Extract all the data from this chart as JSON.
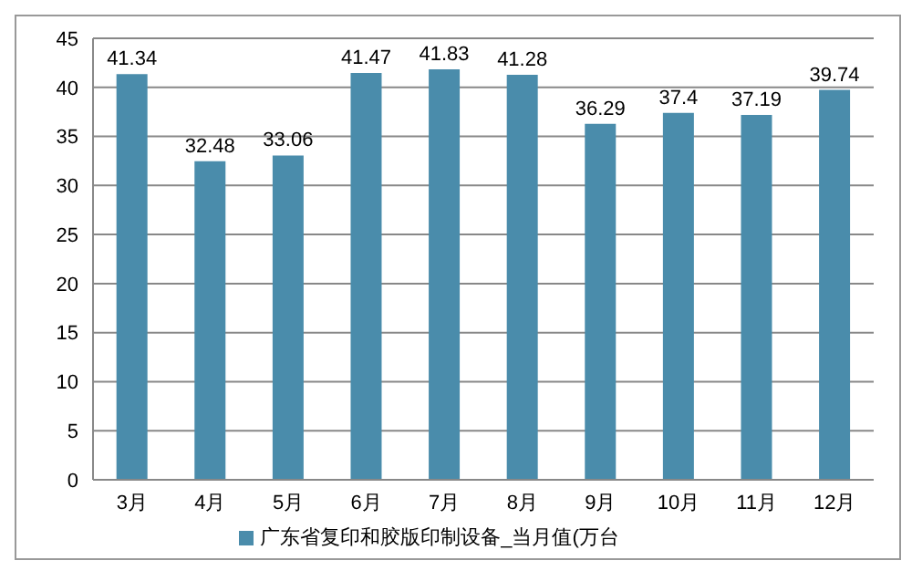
{
  "chart_data": {
    "type": "bar",
    "categories": [
      "3月",
      "4月",
      "5月",
      "6月",
      "7月",
      "8月",
      "9月",
      "10月",
      "11月",
      "12月"
    ],
    "series": [
      {
        "name": "广东省复印和胶版印制设备_当月值(万台",
        "color": "#4a8cab",
        "values": [
          41.34,
          32.48,
          33.06,
          41.47,
          41.83,
          41.28,
          36.29,
          37.4,
          37.19,
          39.74
        ]
      }
    ],
    "ylim": [
      0,
      45
    ],
    "yticks": [
      0,
      5,
      10,
      15,
      20,
      25,
      30,
      35,
      40,
      45
    ],
    "grid": "y",
    "legend": "bottom",
    "data_labels": true
  }
}
